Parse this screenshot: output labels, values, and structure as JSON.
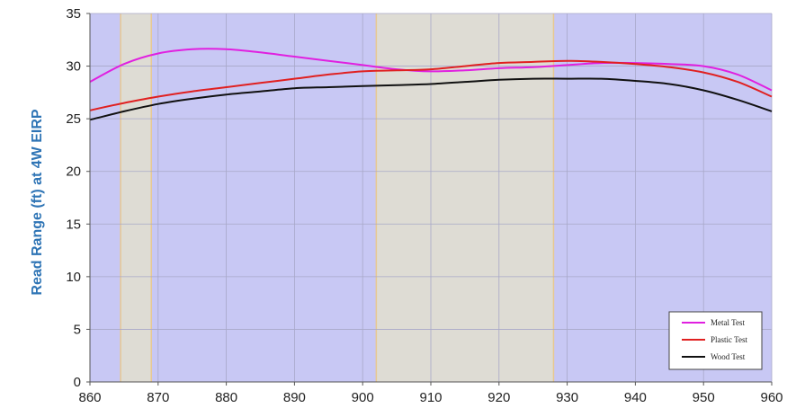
{
  "chart_data": {
    "type": "line",
    "title": "",
    "xlabel": "",
    "ylabel": "Read Range (ft) at 4W EIRP",
    "xlim": [
      860,
      960
    ],
    "ylim": [
      0,
      35
    ],
    "xticks": [
      860,
      870,
      880,
      890,
      900,
      910,
      920,
      930,
      940,
      950,
      960
    ],
    "yticks": [
      0,
      5,
      10,
      15,
      20,
      25,
      30,
      35
    ],
    "grid": true,
    "legend_position": "bottom-right",
    "background_color": "#c8c8f4",
    "band_color": "#dedcd4",
    "band_edge_color": "#e8c890",
    "highlighted_bands": [
      [
        864.5,
        869
      ],
      [
        902,
        928
      ]
    ],
    "x": [
      860,
      865,
      870,
      875,
      880,
      885,
      890,
      895,
      900,
      905,
      910,
      915,
      920,
      925,
      930,
      935,
      940,
      945,
      950,
      955,
      960
    ],
    "series": [
      {
        "name": "Metal Test",
        "color": "#e020e0",
        "values": [
          28.5,
          30.2,
          31.2,
          31.6,
          31.6,
          31.3,
          30.9,
          30.5,
          30.1,
          29.7,
          29.5,
          29.6,
          29.8,
          29.9,
          30.1,
          30.3,
          30.3,
          30.2,
          30.0,
          29.2,
          27.7
        ]
      },
      {
        "name": "Plastic Test",
        "color": "#e02020",
        "values": [
          25.8,
          26.5,
          27.1,
          27.6,
          28.0,
          28.4,
          28.8,
          29.2,
          29.5,
          29.6,
          29.7,
          30.0,
          30.3,
          30.4,
          30.5,
          30.4,
          30.2,
          29.9,
          29.4,
          28.5,
          27.1
        ]
      },
      {
        "name": "Wood Test",
        "color": "#111111",
        "values": [
          24.9,
          25.7,
          26.4,
          26.9,
          27.3,
          27.6,
          27.9,
          28.0,
          28.1,
          28.2,
          28.3,
          28.5,
          28.7,
          28.8,
          28.8,
          28.8,
          28.6,
          28.3,
          27.7,
          26.8,
          25.7
        ]
      }
    ]
  }
}
